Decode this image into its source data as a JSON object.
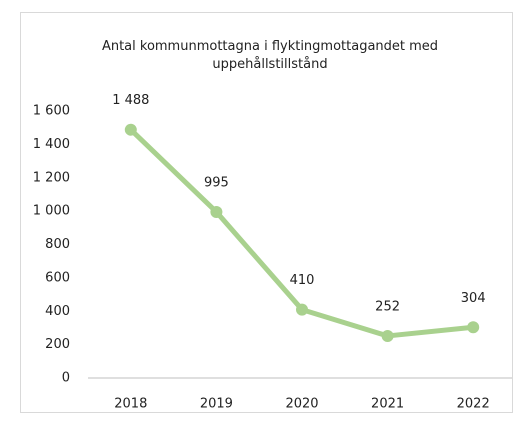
{
  "chart_data": {
    "type": "line",
    "title": "Antal kommunmottagna i flyktingmottagandet med uppehållstillstånd",
    "categories": [
      "2018",
      "2019",
      "2020",
      "2021",
      "2022"
    ],
    "series": [
      {
        "color": "#a9d18e",
        "values": [
          1488,
          995,
          410,
          252,
          304
        ],
        "value_labels": [
          "1 488",
          "995",
          "410",
          "252",
          "304"
        ]
      }
    ],
    "ylim": [
      0,
      1600
    ],
    "yticks": [
      0,
      200,
      400,
      600,
      800,
      {
        "value": 1000,
        "label": "1 000"
      },
      {
        "value": 1200,
        "label": "1 200"
      },
      {
        "value": 1400,
        "label": "1 400"
      },
      {
        "value": 1600,
        "label": "1 600"
      }
    ],
    "grid": false
  }
}
